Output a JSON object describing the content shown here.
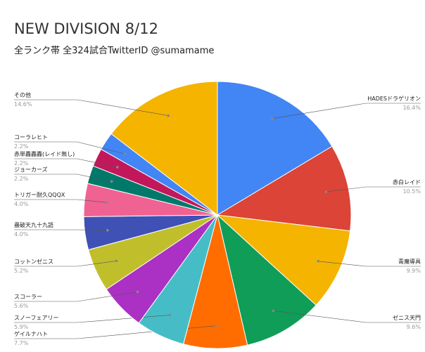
{
  "chart_data": {
    "type": "pie",
    "title": "NEW DIVISION 8/12",
    "subtitle": "全ランク帯 全324試合TwitterID @sumamame",
    "categories": [
      "HADESドラゲリオン",
      "赤白レイド",
      "青魔導具",
      "ゼニス天門",
      "ゲイルナハト",
      "スノーフェアリー",
      "スコーラー",
      "コットンゼニス",
      "蟲破天九十九語",
      "トリガー耐久QQQX",
      "ジョーカーズ",
      "赤単轟轟轟(レイド無し)",
      "コーラレヒト",
      "その他"
    ],
    "values": [
      16.4,
      10.5,
      9.9,
      9.6,
      7.7,
      5.9,
      5.6,
      5.2,
      4.0,
      4.0,
      2.2,
      2.2,
      2.2,
      14.6
    ],
    "value_labels": [
      "16.4%",
      "10.5%",
      "9.9%",
      "9.6%",
      "7.7%",
      "5.9%",
      "5.6%",
      "5.2%",
      "4.0%",
      "4.0%",
      "2.2%",
      "2.2%",
      "2.2%",
      "14.6%"
    ],
    "colors": [
      "#4285f4",
      "#db4437",
      "#f4b400",
      "#0f9d58",
      "#ff6d00",
      "#46bdc6",
      "#ab30c4",
      "#c0bf2b",
      "#3f51b5",
      "#f06292",
      "#00796b",
      "#c2185b",
      "#4285f4",
      "#f4b400"
    ]
  }
}
